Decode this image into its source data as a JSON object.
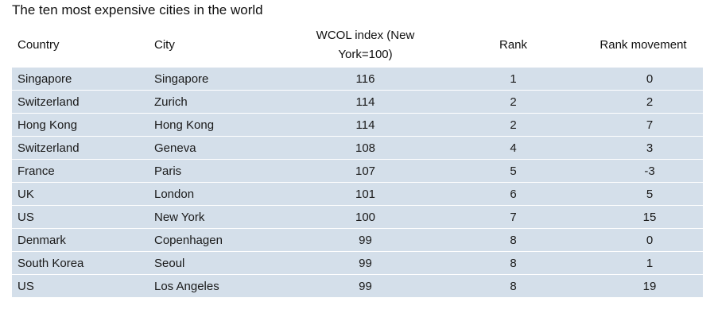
{
  "title": "The ten most expensive cities in the world",
  "chart_data": {
    "type": "table",
    "title": "The ten most expensive cities in the world",
    "columns": [
      "Country",
      "City",
      "WCOL index (New York=100)",
      "Rank",
      "Rank movement"
    ],
    "rows": [
      [
        "Singapore",
        "Singapore",
        "116",
        "1",
        "0"
      ],
      [
        "Switzerland",
        "Zurich",
        "114",
        "2",
        "2"
      ],
      [
        "Hong Kong",
        "Hong Kong",
        "114",
        "2",
        "7"
      ],
      [
        "Switzerland",
        "Geneva",
        "108",
        "4",
        "3"
      ],
      [
        "France",
        "Paris",
        "107",
        "5",
        "-3"
      ],
      [
        "UK",
        "London",
        "101",
        "6",
        "5"
      ],
      [
        "US",
        "New York",
        "100",
        "7",
        "15"
      ],
      [
        "Denmark",
        "Copenhagen",
        "99",
        "8",
        "0"
      ],
      [
        "South Korea",
        "Seoul",
        "99",
        "8",
        "1"
      ],
      [
        "US",
        "Los Angeles",
        "99",
        "8",
        "19"
      ]
    ]
  },
  "colors": {
    "row_background": "#d4dfea",
    "row_separator": "#ffffff"
  }
}
